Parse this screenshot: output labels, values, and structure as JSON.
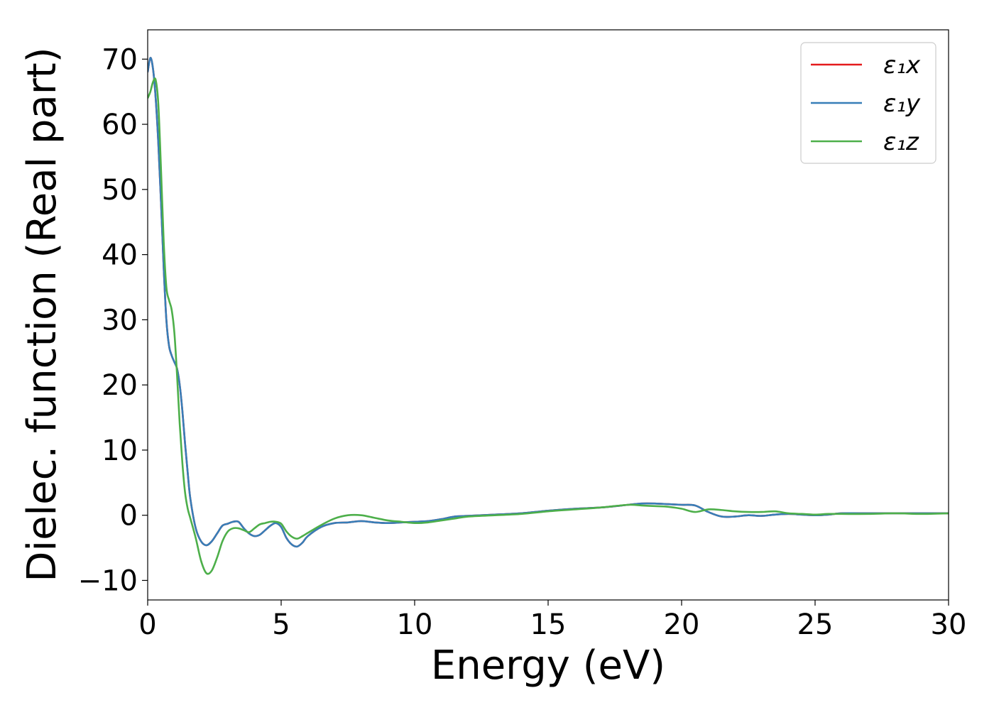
{
  "chart_data": {
    "type": "line",
    "title": "",
    "xlabel": "Energy (eV)",
    "ylabel": "Dielec. function (Real part)",
    "xlim": [
      0,
      30
    ],
    "ylim": [
      -13,
      74.5
    ],
    "xticks": [
      0,
      5,
      10,
      15,
      20,
      25,
      30
    ],
    "xtick_labels": [
      "0",
      "5",
      "10",
      "15",
      "20",
      "25",
      "30"
    ],
    "yticks": [
      -10,
      0,
      10,
      20,
      30,
      40,
      50,
      60,
      70
    ],
    "ytick_labels": [
      "−10",
      "0",
      "10",
      "20",
      "30",
      "40",
      "50",
      "60",
      "70"
    ],
    "grid": false,
    "legend_position": "top-right",
    "series": [
      {
        "name": "ε₁x",
        "sym": "x",
        "color": "#e41a1c",
        "x": [
          0,
          0.1,
          0.2,
          0.3,
          0.4,
          0.5,
          0.6,
          0.7,
          0.8,
          0.9,
          1.0,
          1.1,
          1.2,
          1.3,
          1.4,
          1.5,
          1.6,
          1.8,
          2.0,
          2.2,
          2.4,
          2.6,
          2.8,
          3.0,
          3.2,
          3.4,
          3.6,
          3.8,
          4.0,
          4.2,
          4.4,
          4.6,
          4.8,
          5.0,
          5.2,
          5.4,
          5.6,
          5.8,
          6.0,
          6.5,
          7.0,
          7.5,
          8.0,
          8.5,
          9.0,
          9.5,
          10.0,
          10.5,
          11.0,
          11.5,
          12.0,
          13.0,
          14.0,
          15.0,
          16.0,
          17.0,
          18.0,
          18.5,
          19.0,
          19.5,
          20.0,
          20.5,
          21.0,
          21.5,
          22.0,
          22.5,
          23.0,
          23.5,
          24.0,
          24.5,
          25.0,
          25.5,
          26.0,
          27.0,
          28.0,
          29.0,
          30.0
        ],
        "values": [
          68.0,
          70.2,
          68.5,
          64.0,
          57.0,
          48.0,
          38.0,
          30.0,
          26.0,
          24.5,
          23.5,
          22.5,
          20.0,
          16.0,
          11.0,
          6.5,
          2.5,
          -2.0,
          -4.0,
          -4.6,
          -4.0,
          -2.8,
          -1.6,
          -1.3,
          -1.0,
          -1.0,
          -2.0,
          -2.8,
          -3.2,
          -3.0,
          -2.3,
          -1.6,
          -1.2,
          -1.8,
          -3.5,
          -4.5,
          -4.8,
          -4.2,
          -3.2,
          -1.8,
          -1.2,
          -1.1,
          -0.9,
          -1.1,
          -1.2,
          -1.1,
          -1.0,
          -0.9,
          -0.6,
          -0.2,
          -0.1,
          0.1,
          0.3,
          0.7,
          1.0,
          1.2,
          1.6,
          1.8,
          1.8,
          1.7,
          1.6,
          1.5,
          0.5,
          -0.2,
          -0.2,
          0.0,
          -0.1,
          0.1,
          0.2,
          0.1,
          0.0,
          0.1,
          0.3,
          0.3,
          0.3,
          0.3,
          0.3
        ]
      },
      {
        "name": "ε₁y",
        "sym": "y",
        "color": "#377eb8",
        "x": [
          0,
          0.1,
          0.2,
          0.3,
          0.4,
          0.5,
          0.6,
          0.7,
          0.8,
          0.9,
          1.0,
          1.1,
          1.2,
          1.3,
          1.4,
          1.5,
          1.6,
          1.8,
          2.0,
          2.2,
          2.4,
          2.6,
          2.8,
          3.0,
          3.2,
          3.4,
          3.6,
          3.8,
          4.0,
          4.2,
          4.4,
          4.6,
          4.8,
          5.0,
          5.2,
          5.4,
          5.6,
          5.8,
          6.0,
          6.5,
          7.0,
          7.5,
          8.0,
          8.5,
          9.0,
          9.5,
          10.0,
          10.5,
          11.0,
          11.5,
          12.0,
          13.0,
          14.0,
          15.0,
          16.0,
          17.0,
          18.0,
          18.5,
          19.0,
          19.5,
          20.0,
          20.5,
          21.0,
          21.5,
          22.0,
          22.5,
          23.0,
          23.5,
          24.0,
          24.5,
          25.0,
          25.5,
          26.0,
          27.0,
          28.0,
          29.0,
          30.0
        ],
        "values": [
          68.0,
          70.2,
          68.5,
          64.0,
          57.0,
          48.0,
          38.0,
          30.0,
          26.0,
          24.5,
          23.5,
          22.5,
          20.0,
          16.0,
          11.0,
          6.5,
          2.5,
          -2.0,
          -4.0,
          -4.6,
          -4.0,
          -2.8,
          -1.6,
          -1.3,
          -1.0,
          -1.0,
          -2.0,
          -2.8,
          -3.2,
          -3.0,
          -2.3,
          -1.6,
          -1.2,
          -1.8,
          -3.5,
          -4.5,
          -4.8,
          -4.2,
          -3.2,
          -1.8,
          -1.2,
          -1.1,
          -0.9,
          -1.1,
          -1.2,
          -1.1,
          -1.0,
          -0.9,
          -0.6,
          -0.2,
          -0.1,
          0.1,
          0.3,
          0.7,
          1.0,
          1.2,
          1.6,
          1.8,
          1.8,
          1.7,
          1.6,
          1.5,
          0.5,
          -0.2,
          -0.2,
          0.0,
          -0.1,
          0.1,
          0.2,
          0.1,
          0.0,
          0.1,
          0.3,
          0.3,
          0.3,
          0.3,
          0.3
        ]
      },
      {
        "name": "ε₁z",
        "sym": "z",
        "color": "#4daf4a",
        "x": [
          0,
          0.1,
          0.2,
          0.3,
          0.4,
          0.5,
          0.6,
          0.7,
          0.8,
          0.9,
          1.0,
          1.1,
          1.2,
          1.3,
          1.4,
          1.5,
          1.6,
          1.8,
          2.0,
          2.2,
          2.4,
          2.6,
          2.8,
          3.0,
          3.2,
          3.4,
          3.6,
          3.8,
          4.0,
          4.2,
          4.4,
          4.6,
          4.8,
          5.0,
          5.2,
          5.4,
          5.6,
          5.8,
          6.0,
          6.5,
          7.0,
          7.5,
          8.0,
          8.5,
          9.0,
          9.5,
          10.0,
          10.5,
          11.0,
          11.5,
          12.0,
          13.0,
          14.0,
          15.0,
          16.0,
          17.0,
          18.0,
          18.5,
          19.0,
          19.5,
          20.0,
          20.5,
          21.0,
          21.5,
          22.0,
          22.5,
          23.0,
          23.5,
          24.0,
          24.5,
          25.0,
          25.5,
          26.0,
          27.0,
          28.0,
          29.0,
          30.0
        ],
        "values": [
          64.0,
          65.0,
          66.5,
          66.8,
          63.0,
          53.0,
          42.0,
          35.0,
          33.0,
          31.5,
          28.0,
          21.5,
          14.0,
          8.0,
          3.5,
          1.0,
          -0.5,
          -3.5,
          -7.0,
          -8.9,
          -8.5,
          -6.5,
          -4.0,
          -2.5,
          -2.0,
          -2.0,
          -2.3,
          -2.6,
          -2.0,
          -1.4,
          -1.2,
          -1.0,
          -1.0,
          -1.3,
          -2.5,
          -3.3,
          -3.6,
          -3.2,
          -2.7,
          -1.5,
          -0.5,
          0.0,
          0.0,
          -0.4,
          -0.8,
          -1.0,
          -1.2,
          -1.1,
          -0.8,
          -0.5,
          -0.2,
          0.0,
          0.2,
          0.6,
          0.9,
          1.2,
          1.6,
          1.5,
          1.4,
          1.3,
          1.0,
          0.5,
          0.9,
          0.8,
          0.6,
          0.5,
          0.5,
          0.6,
          0.3,
          0.2,
          0.1,
          0.2,
          0.2,
          0.2,
          0.3,
          0.2,
          0.3
        ]
      }
    ]
  }
}
